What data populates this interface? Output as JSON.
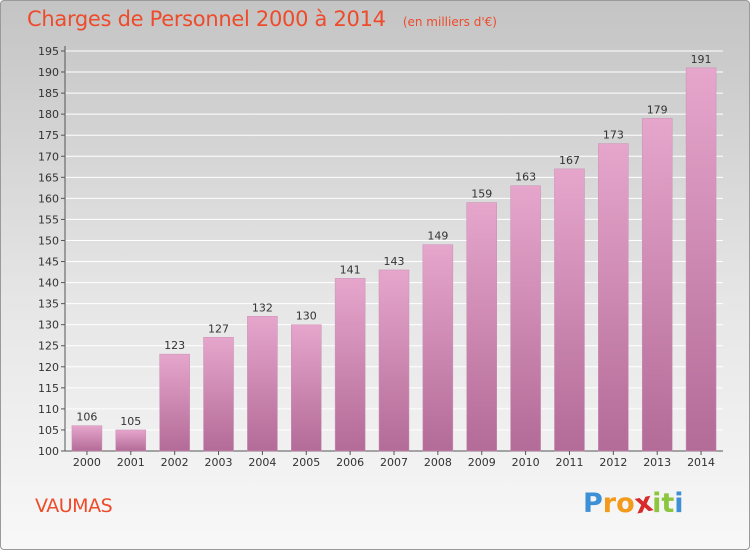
{
  "chart_data": {
    "type": "bar",
    "title": "Charges de Personnel 2000 à 2014",
    "subtitle": "(en milliers d'€)",
    "categories": [
      "2000",
      "2001",
      "2002",
      "2003",
      "2004",
      "2005",
      "2006",
      "2007",
      "2008",
      "2009",
      "2010",
      "2011",
      "2012",
      "2013",
      "2014"
    ],
    "values": [
      106,
      105,
      123,
      127,
      132,
      130,
      141,
      143,
      149,
      159,
      163,
      167,
      173,
      179,
      191
    ],
    "ylim": [
      100,
      195
    ],
    "yticks": [
      100,
      105,
      110,
      115,
      120,
      125,
      130,
      135,
      140,
      145,
      150,
      155,
      160,
      165,
      170,
      175,
      180,
      185,
      190,
      195
    ],
    "grid": true,
    "xlabel": "",
    "ylabel": ""
  },
  "commune": "VAUMAS",
  "logo": {
    "letters": [
      "P",
      "r",
      "o",
      "x",
      "i",
      "t",
      "i"
    ],
    "colors": [
      "#3d8fd6",
      "#f29a1c",
      "#f29a1c",
      "#d82a2a",
      "#8cc63f",
      "#8cc63f",
      "#3d8fd6"
    ]
  },
  "colors": {
    "title": "#ee4b2b",
    "bar_top": "#e6a6cc",
    "bar_bottom": "#b36b97",
    "grid": "#ffffff",
    "axis": "#555555"
  }
}
